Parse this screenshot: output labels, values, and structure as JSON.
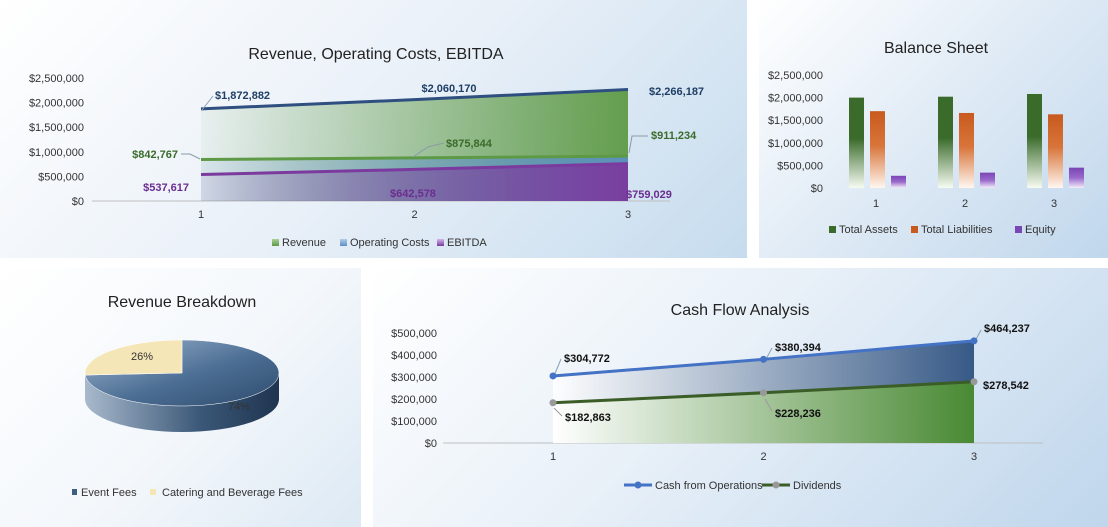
{
  "colors": {
    "revenue": "#5e9a45",
    "operating_costs": "#5b8fc9",
    "ebitda": "#7b3a9e",
    "revenue_line_top": "#2e4f7f",
    "total_assets": "#3a6b2a",
    "total_liabilities": "#c85a1e",
    "equity": "#7a45b5",
    "pie_event_fees": "#3e5f84",
    "pie_catering": "#f5e6b8",
    "cash_ops": "#4472c4",
    "dividends": "#3b5d27",
    "dividend_marker": "#999999"
  },
  "chart_data": [
    {
      "type": "area",
      "title": "Revenue, Operating Costs, EBITDA",
      "categories": [
        "1",
        "2",
        "3"
      ],
      "series": [
        {
          "name": "Revenue",
          "values": [
            1872882,
            2060170,
            2266187
          ],
          "labels": [
            "$1,872,882",
            "$2,060,170",
            "$2,266,187"
          ]
        },
        {
          "name": "Operating Costs",
          "values": [
            842767,
            875844,
            911234
          ],
          "labels": [
            "$842,767",
            "$875,844",
            "$911,234"
          ]
        },
        {
          "name": "EBITDA",
          "values": [
            537617,
            642578,
            759029
          ],
          "labels": [
            "$537,617",
            "$642,578",
            "$759,029"
          ]
        }
      ],
      "ylim": [
        0,
        2500000
      ],
      "y_ticks": [
        "$0",
        "$500,000",
        "$1,000,000",
        "$1,500,000",
        "$2,000,000",
        "$2,500,000"
      ],
      "legend": "bottom",
      "grid": false
    },
    {
      "type": "bar",
      "title": "Balance Sheet",
      "categories": [
        "1",
        "2",
        "3"
      ],
      "series": [
        {
          "name": "Total Assets",
          "values": [
            2000000,
            2020000,
            2080000
          ]
        },
        {
          "name": "Total Liabilities",
          "values": [
            1700000,
            1660000,
            1630000
          ]
        },
        {
          "name": "Equity",
          "values": [
            270000,
            340000,
            450000
          ]
        }
      ],
      "ylim": [
        0,
        2500000
      ],
      "y_ticks": [
        "$0",
        "$500,000",
        "$1,000,000",
        "$1,500,000",
        "$2,000,000",
        "$2,500,000"
      ],
      "legend": "bottom",
      "grid": false
    },
    {
      "type": "pie",
      "title": "Revenue Breakdown",
      "series": [
        {
          "name": "Event Fees",
          "values": [
            74
          ],
          "label": "74%"
        },
        {
          "name": "Catering and Beverage Fees",
          "values": [
            26
          ],
          "label": "26%"
        }
      ],
      "legend": "bottom"
    },
    {
      "type": "line",
      "title": "Cash Flow Analysis",
      "categories": [
        "1",
        "2",
        "3"
      ],
      "series": [
        {
          "name": "Cash from Operations",
          "values": [
            304772,
            380394,
            464237
          ],
          "labels": [
            "$304,772",
            "$380,394",
            "$464,237"
          ]
        },
        {
          "name": "Dividends",
          "values": [
            182863,
            228236,
            278542
          ],
          "labels": [
            "$182,863",
            "$228,236",
            "$278,542"
          ]
        }
      ],
      "ylim": [
        0,
        500000
      ],
      "y_ticks": [
        "$0",
        "$100,000",
        "$200,000",
        "$300,000",
        "$400,000",
        "$500,000"
      ],
      "legend": "bottom",
      "grid": false
    }
  ]
}
